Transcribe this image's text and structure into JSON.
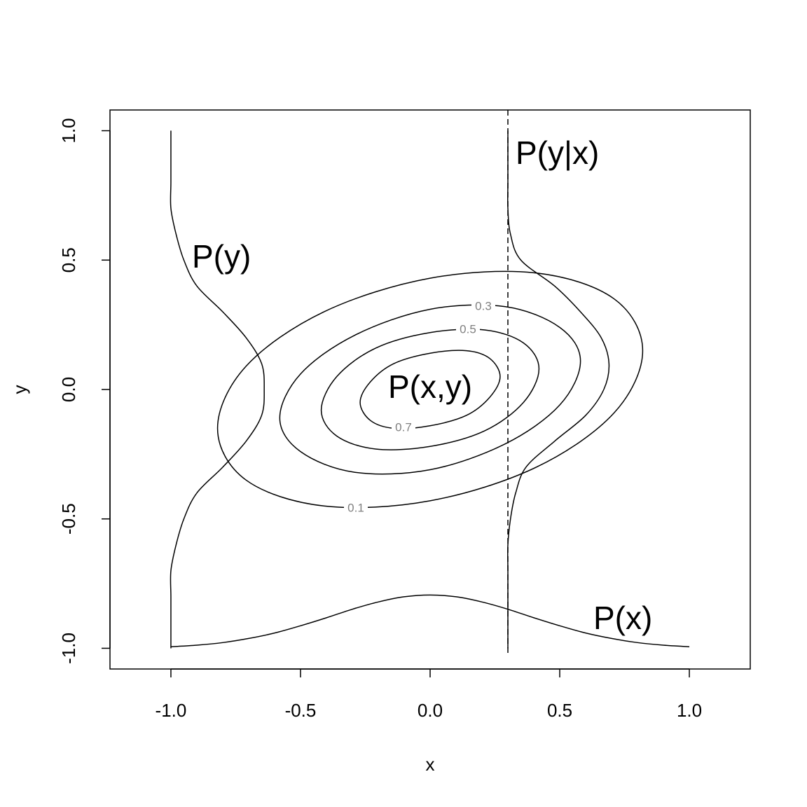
{
  "chart_data": {
    "type": "contour",
    "xlabel": "x",
    "ylabel": "y",
    "xlim": [
      -1.235,
      1.235
    ],
    "ylim": [
      -1.08,
      1.08
    ],
    "xticks": [
      {
        "value": -1,
        "label": "-1.0"
      },
      -0.5,
      {
        "value": 0,
        "label": "0.0"
      },
      0.5,
      {
        "value": 1,
        "label": "1.0"
      }
    ],
    "yticks": [
      {
        "value": -1,
        "label": "-1.0"
      },
      -0.5,
      {
        "value": 0,
        "label": "0.0"
      },
      0.5,
      {
        "value": 1,
        "label": "1.0"
      }
    ],
    "annotation": "P(x,y)",
    "contours": [
      {
        "level": 0.1,
        "x": [
          0.82,
          0.71,
          0.41,
          0,
          -0.41,
          -0.71,
          -0.82,
          -0.71,
          -0.41,
          0,
          0.41,
          0.71
        ],
        "y": [
          0.15,
          0.35,
          0.45,
          0.43,
          0.3,
          0.09,
          -0.15,
          -0.35,
          -0.45,
          -0.43,
          -0.3,
          -0.09
        ]
      },
      {
        "level": 0.3,
        "x": [
          0.58,
          0.5,
          0.29,
          0,
          -0.29,
          -0.5,
          -0.58,
          -0.5,
          -0.29,
          0,
          0.29,
          0.5
        ],
        "y": [
          0.11,
          0.24,
          0.32,
          0.31,
          0.21,
          0.06,
          -0.11,
          -0.24,
          -0.32,
          -0.31,
          -0.21,
          -0.06
        ]
      },
      {
        "level": 0.5,
        "x": [
          0.42,
          0.36,
          0.21,
          0,
          -0.21,
          -0.36,
          -0.42,
          -0.36,
          -0.21,
          0,
          0.21,
          0.36
        ],
        "y": [
          0.08,
          0.18,
          0.23,
          0.22,
          0.16,
          0.05,
          -0.08,
          -0.18,
          -0.23,
          -0.22,
          -0.16,
          -0.05
        ]
      },
      {
        "level": 0.7,
        "x": [
          0.27,
          0.23,
          0.14,
          0,
          -0.14,
          -0.23,
          -0.27,
          -0.23,
          -0.14,
          0,
          0.14,
          0.23
        ],
        "y": [
          0.05,
          0.12,
          0.15,
          0.14,
          0.1,
          0.03,
          -0.05,
          -0.12,
          -0.15,
          -0.14,
          -0.1,
          -0.03
        ]
      }
    ],
    "curves": [
      {
        "name": "P(y)",
        "x": [
          -1,
          -1,
          -1,
          -1,
          -0.98,
          -0.95,
          -0.9,
          -0.8,
          -0.71,
          -0.65,
          -0.64,
          -0.65,
          -0.71,
          -0.8,
          -0.9,
          -0.95,
          -0.98,
          -1,
          -1,
          -1,
          -1
        ],
        "y": [
          1,
          0.9,
          0.8,
          0.7,
          0.6,
          0.5,
          0.4,
          0.3,
          0.2,
          0.1,
          0,
          -0.1,
          -0.2,
          -0.3,
          -0.4,
          -0.5,
          -0.6,
          -0.7,
          -0.8,
          -0.9,
          -1
        ]
      },
      {
        "name": "P(x)",
        "x": [
          -1,
          -0.9,
          -0.8,
          -0.7,
          -0.6,
          -0.5,
          -0.4,
          -0.3,
          -0.2,
          -0.1,
          0,
          0.1,
          0.2,
          0.3,
          0.4,
          0.5,
          0.6,
          0.7,
          0.8,
          0.9,
          1
        ],
        "y": [
          -0.994,
          -0.988,
          -0.978,
          -0.962,
          -0.941,
          -0.913,
          -0.882,
          -0.849,
          -0.821,
          -0.801,
          -0.794,
          -0.801,
          -0.821,
          -0.849,
          -0.882,
          -0.913,
          -0.941,
          -0.962,
          -0.978,
          -0.988,
          -0.994
        ]
      },
      {
        "name": "P(y|x)",
        "x": [
          0.3,
          0.3,
          0.3,
          0.3,
          0.31,
          0.35,
          0.48,
          0.58,
          0.66,
          0.69,
          0.67,
          0.6,
          0.48,
          0.37,
          0.33,
          0.31,
          0.3,
          0.3,
          0.3,
          0.3,
          0.3
        ],
        "y": [
          1,
          0.9,
          0.8,
          0.7,
          0.6,
          0.5,
          0.4,
          0.3,
          0.2,
          0.1,
          0,
          -0.1,
          -0.2,
          -0.3,
          -0.4,
          -0.5,
          -0.6,
          -0.7,
          -0.8,
          -0.9,
          -1
        ]
      }
    ],
    "vline": {
      "x": 0.3,
      "dashed": true
    }
  }
}
